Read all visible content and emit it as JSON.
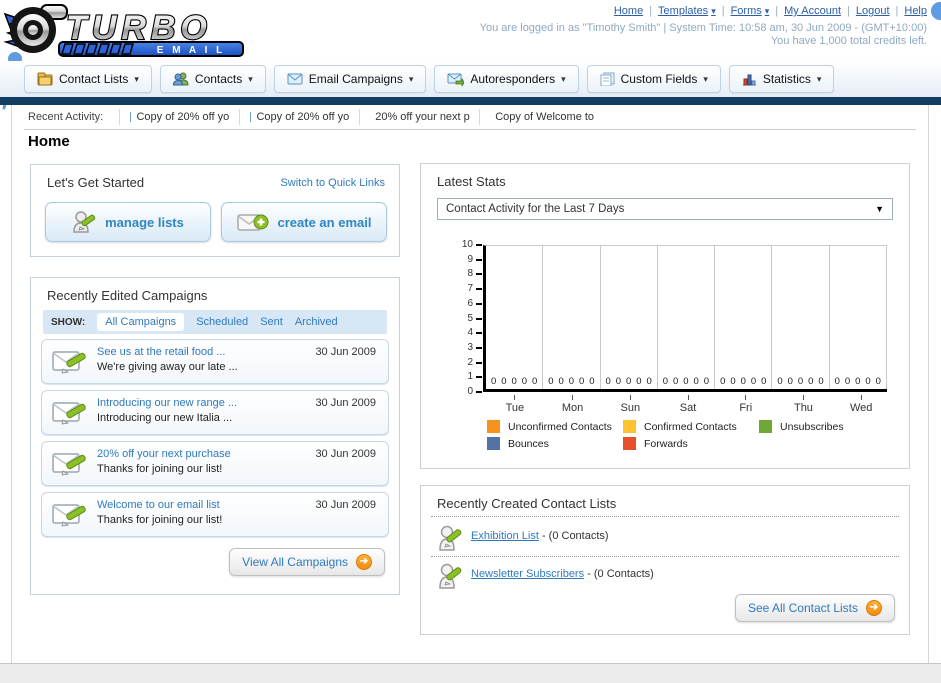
{
  "brand": {
    "word_top": "TURBO",
    "word_bottom": "E M A I L"
  },
  "header": {
    "links": [
      {
        "label": "Home",
        "has_dropdown": false
      },
      {
        "label": "Templates",
        "has_dropdown": true
      },
      {
        "label": "Forms",
        "has_dropdown": true
      },
      {
        "label": "My Account",
        "has_dropdown": false
      },
      {
        "label": "Logout",
        "has_dropdown": false
      },
      {
        "label": "Help",
        "has_dropdown": false
      }
    ],
    "status_line1": "You are logged in as \"Timothy Smith\" | System Time: 10:58 am, 30 Jun 2009 - (GMT+10:00)",
    "status_line2": "You have 1,000 total credits left."
  },
  "main_nav": {
    "items": [
      {
        "label": "Contact Lists",
        "icon": "contact-lists-folder-icon"
      },
      {
        "label": "Contacts",
        "icon": "contacts-people-icon"
      },
      {
        "label": "Email Campaigns",
        "icon": "email-envelope-icon"
      },
      {
        "label": "Autoresponders",
        "icon": "autoresponder-envelope-icon"
      },
      {
        "label": "Custom Fields",
        "icon": "custom-fields-pages-icon"
      },
      {
        "label": "Statistics",
        "icon": "statistics-chart-icon"
      }
    ]
  },
  "recent_activity": {
    "label": "Recent Activity:",
    "items": [
      {
        "text": "Copy of 20% off yo",
        "icon": "envelope-icon"
      },
      {
        "text": "Copy of 20% off yo",
        "icon": "envelope-icon"
      },
      {
        "text": "20% off your next p",
        "icon": "envelope-icon"
      },
      {
        "text": "Copy of Welcome to",
        "icon": "envelope-icon"
      }
    ]
  },
  "page_title": "Home",
  "get_started": {
    "title": "Let's Get Started",
    "switch_link": "Switch to Quick Links",
    "manage_lists_label": "manage lists",
    "create_email_label": "create an email"
  },
  "campaigns": {
    "title": "Recently Edited Campaigns",
    "show_label": "SHOW:",
    "tabs": [
      {
        "label": "All Campaigns",
        "active": true
      },
      {
        "label": "Scheduled",
        "active": false
      },
      {
        "label": "Sent",
        "active": false
      },
      {
        "label": "Archived",
        "active": false
      }
    ],
    "items": [
      {
        "title": "See us at the retail food ...",
        "subtitle": "We're giving away our late ...",
        "date": "30 Jun 2009"
      },
      {
        "title": "Introducing our new range ...",
        "subtitle": "Introducing our new Italia ...",
        "date": "30 Jun 2009"
      },
      {
        "title": "20% off your next purchase",
        "subtitle": "Thanks for joining our list!",
        "date": "30 Jun 2009"
      },
      {
        "title": "Welcome to our email list",
        "subtitle": "Thanks for joining our list!",
        "date": "30 Jun 2009"
      }
    ],
    "view_all_label": "View All Campaigns"
  },
  "latest_stats": {
    "title": "Latest Stats",
    "selected_report": "Contact Activity for the Last 7 Days",
    "chart_data": {
      "type": "bar",
      "title": "Contact Activity for the Last 7 Days",
      "categories": [
        "Tue",
        "Mon",
        "Sun",
        "Sat",
        "Fri",
        "Thu",
        "Wed"
      ],
      "series": [
        {
          "name": "Unconfirmed Contacts",
          "color": "#f6921e",
          "values": [
            0,
            0,
            0,
            0,
            0,
            0,
            0
          ]
        },
        {
          "name": "Confirmed Contacts",
          "color": "#fdc22d",
          "values": [
            0,
            0,
            0,
            0,
            0,
            0,
            0
          ]
        },
        {
          "name": "Unsubscribes",
          "color": "#6fa834",
          "values": [
            0,
            0,
            0,
            0,
            0,
            0,
            0
          ]
        },
        {
          "name": "Bounces",
          "color": "#5572a7",
          "values": [
            0,
            0,
            0,
            0,
            0,
            0,
            0
          ]
        },
        {
          "name": "Forwards",
          "color": "#e54f2a",
          "values": [
            0,
            0,
            0,
            0,
            0,
            0,
            0
          ]
        }
      ],
      "ylim": [
        0,
        10
      ],
      "yticks": [
        0,
        1,
        2,
        3,
        4,
        5,
        6,
        7,
        8,
        9,
        10
      ],
      "grid": "vertical-between-groups",
      "value_labels_shown": true,
      "legend_position": "bottom"
    }
  },
  "contact_lists": {
    "title": "Recently Created Contact Lists",
    "items": [
      {
        "name": "Exhibition List",
        "detail": "- (0 Contacts)"
      },
      {
        "name": "Newsletter Subscribers",
        "detail": "- (0 Contacts)"
      }
    ],
    "see_all_label": "See All Contact Lists"
  },
  "colors": {
    "navy_bar": "#123e63",
    "link_blue": "#2f7abf",
    "status_text": "#8fa9c2",
    "annotation_blue": "#5f9be0",
    "accent_orange": "#f0930f"
  }
}
